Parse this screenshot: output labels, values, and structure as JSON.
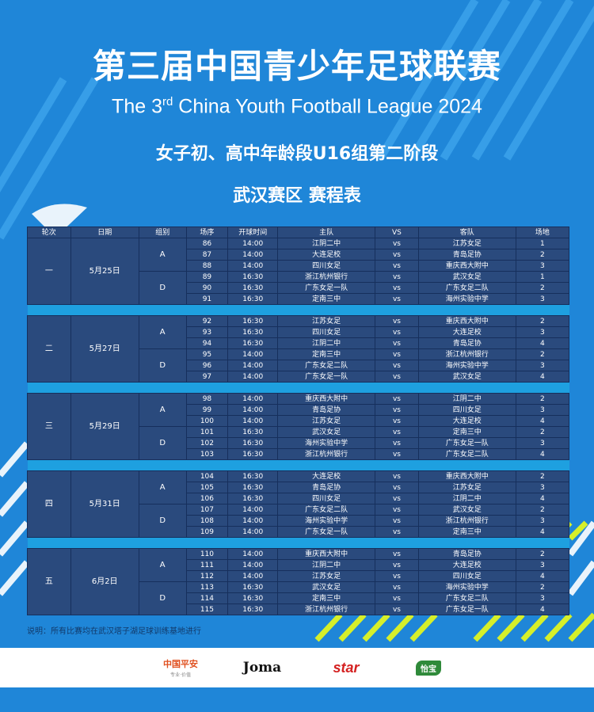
{
  "title_cn": "第三届中国青少年足球联赛",
  "title_en_prefix": "The 3",
  "title_en_sup": "rd",
  "title_en_suffix": " China Youth Football League 2024",
  "subtitle": "女子初、高中年龄段U16组第二阶段",
  "region": "武汉赛区  赛程表",
  "table": {
    "headers": [
      "轮次",
      "日期",
      "组别",
      "场序",
      "开球时间",
      "主队",
      "VS",
      "客队",
      "场地"
    ],
    "rounds": [
      {
        "round": "一",
        "date": "5月25日",
        "groups": [
          {
            "group": "A",
            "matches": [
              {
                "no": "86",
                "time": "14:00",
                "home": "江阴二中",
                "vs": "vs",
                "away": "江苏女足",
                "field": "1"
              },
              {
                "no": "87",
                "time": "14:00",
                "home": "大连足校",
                "vs": "vs",
                "away": "青岛足协",
                "field": "2"
              },
              {
                "no": "88",
                "time": "14:00",
                "home": "四川女足",
                "vs": "vs",
                "away": "重庆西大附中",
                "field": "3"
              }
            ]
          },
          {
            "group": "D",
            "matches": [
              {
                "no": "89",
                "time": "16:30",
                "home": "浙江杭州银行",
                "vs": "vs",
                "away": "武汉女足",
                "field": "1"
              },
              {
                "no": "90",
                "time": "16:30",
                "home": "广东女足一队",
                "vs": "vs",
                "away": "广东女足二队",
                "field": "2"
              },
              {
                "no": "91",
                "time": "16:30",
                "home": "定南三中",
                "vs": "vs",
                "away": "海州实验中学",
                "field": "3"
              }
            ]
          }
        ]
      },
      {
        "round": "二",
        "date": "5月27日",
        "groups": [
          {
            "group": "A",
            "matches": [
              {
                "no": "92",
                "time": "16:30",
                "home": "江苏女足",
                "vs": "vs",
                "away": "重庆西大附中",
                "field": "2"
              },
              {
                "no": "93",
                "time": "16:30",
                "home": "四川女足",
                "vs": "vs",
                "away": "大连足校",
                "field": "3"
              },
              {
                "no": "94",
                "time": "16:30",
                "home": "江阴二中",
                "vs": "vs",
                "away": "青岛足协",
                "field": "4"
              }
            ]
          },
          {
            "group": "D",
            "matches": [
              {
                "no": "95",
                "time": "14:00",
                "home": "定南三中",
                "vs": "vs",
                "away": "浙江杭州银行",
                "field": "2"
              },
              {
                "no": "96",
                "time": "14:00",
                "home": "广东女足二队",
                "vs": "vs",
                "away": "海州实验中学",
                "field": "3"
              },
              {
                "no": "97",
                "time": "14:00",
                "home": "广东女足一队",
                "vs": "vs",
                "away": "武汉女足",
                "field": "4"
              }
            ]
          }
        ]
      },
      {
        "round": "三",
        "date": "5月29日",
        "groups": [
          {
            "group": "A",
            "matches": [
              {
                "no": "98",
                "time": "14:00",
                "home": "重庆西大附中",
                "vs": "vs",
                "away": "江阴二中",
                "field": "2"
              },
              {
                "no": "99",
                "time": "14:00",
                "home": "青岛足协",
                "vs": "vs",
                "away": "四川女足",
                "field": "3"
              },
              {
                "no": "100",
                "time": "14:00",
                "home": "江苏女足",
                "vs": "vs",
                "away": "大连足校",
                "field": "4"
              }
            ]
          },
          {
            "group": "D",
            "matches": [
              {
                "no": "101",
                "time": "16:30",
                "home": "武汉女足",
                "vs": "vs",
                "away": "定南三中",
                "field": "2"
              },
              {
                "no": "102",
                "time": "16:30",
                "home": "海州实验中学",
                "vs": "vs",
                "away": "广东女足一队",
                "field": "3"
              },
              {
                "no": "103",
                "time": "16:30",
                "home": "浙江杭州银行",
                "vs": "vs",
                "away": "广东女足二队",
                "field": "4"
              }
            ]
          }
        ]
      },
      {
        "round": "四",
        "date": "5月31日",
        "groups": [
          {
            "group": "A",
            "matches": [
              {
                "no": "104",
                "time": "16:30",
                "home": "大连足校",
                "vs": "vs",
                "away": "重庆西大附中",
                "field": "2"
              },
              {
                "no": "105",
                "time": "16:30",
                "home": "青岛足协",
                "vs": "vs",
                "away": "江苏女足",
                "field": "3"
              },
              {
                "no": "106",
                "time": "16:30",
                "home": "四川女足",
                "vs": "vs",
                "away": "江阴二中",
                "field": "4"
              }
            ]
          },
          {
            "group": "D",
            "matches": [
              {
                "no": "107",
                "time": "14:00",
                "home": "广东女足二队",
                "vs": "vs",
                "away": "武汉女足",
                "field": "2"
              },
              {
                "no": "108",
                "time": "14:00",
                "home": "海州实验中学",
                "vs": "vs",
                "away": "浙江杭州银行",
                "field": "3"
              },
              {
                "no": "109",
                "time": "14:00",
                "home": "广东女足一队",
                "vs": "vs",
                "away": "定南三中",
                "field": "4"
              }
            ]
          }
        ]
      },
      {
        "round": "五",
        "date": "6月2日",
        "groups": [
          {
            "group": "A",
            "matches": [
              {
                "no": "110",
                "time": "14:00",
                "home": "重庆西大附中",
                "vs": "vs",
                "away": "青岛足协",
                "field": "2"
              },
              {
                "no": "111",
                "time": "14:00",
                "home": "江阴二中",
                "vs": "vs",
                "away": "大连足校",
                "field": "3"
              },
              {
                "no": "112",
                "time": "14:00",
                "home": "江苏女足",
                "vs": "vs",
                "away": "四川女足",
                "field": "4"
              }
            ]
          },
          {
            "group": "D",
            "matches": [
              {
                "no": "113",
                "time": "16:30",
                "home": "武汉女足",
                "vs": "vs",
                "away": "海州实验中学",
                "field": "2"
              },
              {
                "no": "114",
                "time": "16:30",
                "home": "定南三中",
                "vs": "vs",
                "away": "广东女足二队",
                "field": "3"
              },
              {
                "no": "115",
                "time": "16:30",
                "home": "浙江杭州银行",
                "vs": "vs",
                "away": "广东女足一队",
                "field": "4"
              }
            ]
          }
        ]
      }
    ]
  },
  "note": "说明：所有比赛均在武汉塔子湖足球训练基地进行",
  "sponsors": {
    "pingan": "中国平安",
    "pingan_sub": "专业·价值",
    "joma": "Joma",
    "star": "star",
    "yibao": "怡宝"
  },
  "colors": {
    "background": "#1f86d8",
    "table_cell": "#2a4a7d",
    "table_border": "#162f5c",
    "gap_row": "#1ea0e0",
    "accent_stripe": "#d6ef2a"
  }
}
